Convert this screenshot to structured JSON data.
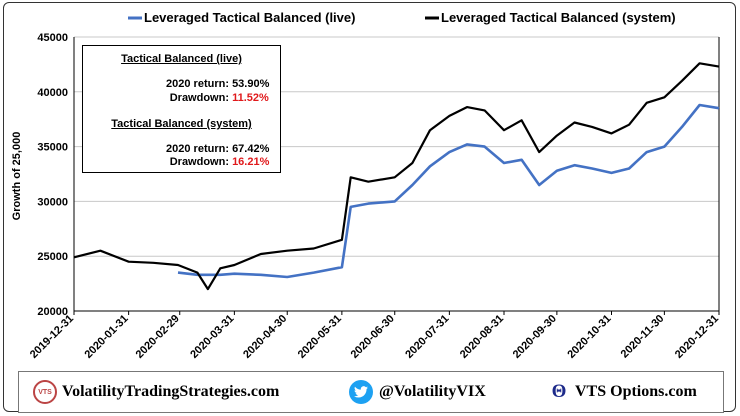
{
  "chart_data": {
    "type": "line",
    "ylabel": "Growth of 25,000",
    "ylim": [
      20000,
      45000
    ],
    "yticks": [
      "20000",
      "25000",
      "30000",
      "35000",
      "40000",
      "45000"
    ],
    "xticks": [
      "2019-12-31",
      "2020-01-31",
      "2020-02-29",
      "2020-03-31",
      "2020-04-30",
      "2020-05-31",
      "2020-06-30",
      "2020-07-31",
      "2020-08-31",
      "2020-09-30",
      "2020-10-31",
      "2020-11-30",
      "2020-12-31"
    ],
    "x": [
      "2019-12-31",
      "2020-01-15",
      "2020-01-31",
      "2020-02-14",
      "2020-02-28",
      "2020-03-10",
      "2020-03-16",
      "2020-03-23",
      "2020-03-31",
      "2020-04-15",
      "2020-04-30",
      "2020-05-15",
      "2020-05-31",
      "2020-06-05",
      "2020-06-15",
      "2020-06-30",
      "2020-07-10",
      "2020-07-20",
      "2020-07-31",
      "2020-08-10",
      "2020-08-20",
      "2020-08-31",
      "2020-09-10",
      "2020-09-20",
      "2020-09-30",
      "2020-10-10",
      "2020-10-20",
      "2020-10-31",
      "2020-11-10",
      "2020-11-20",
      "2020-11-30",
      "2020-12-10",
      "2020-12-20",
      "2020-12-31"
    ],
    "series": [
      {
        "name": "Leveraged Tactical Balanced  (live)",
        "color": "#4472c4",
        "values": [
          null,
          null,
          null,
          null,
          23500,
          23300,
          23300,
          23300,
          23400,
          23300,
          23100,
          23500,
          24000,
          29500,
          29800,
          30000,
          31500,
          33200,
          34500,
          35200,
          35000,
          33500,
          33800,
          31500,
          32800,
          33300,
          33000,
          32600,
          33000,
          34500,
          35000,
          36800,
          38800,
          38500
        ]
      },
      {
        "name": "Leveraged Tactical Balanced  (system)",
        "color": "#000000",
        "values": [
          24900,
          25500,
          24500,
          24400,
          24200,
          23500,
          22000,
          23900,
          24200,
          25200,
          25500,
          25700,
          26500,
          32200,
          31800,
          32200,
          33500,
          36500,
          37800,
          38600,
          38300,
          36500,
          37400,
          34500,
          36000,
          37200,
          36800,
          36200,
          37000,
          39000,
          39500,
          41000,
          42600,
          42300
        ]
      }
    ],
    "legend_position": "top",
    "grid": true
  },
  "stats": {
    "live_title": "Tactical Balanced  (live)",
    "live_return_label": "2020 return:",
    "live_return": "53.90%",
    "live_dd_label": "Drawdown:",
    "live_dd": "11.52%",
    "system_title": "Tactical Balanced  (system)",
    "system_return_label": "2020 return:",
    "system_return": "67.42%",
    "system_dd_label": "Drawdown:",
    "system_dd": "16.21%"
  },
  "footer": {
    "site": "VolatilityTradingStrategies.com",
    "vts_badge": "VTS",
    "twitter": "@VolatilityVIX",
    "options": "VTS Options.com",
    "accent": "#e0191b"
  }
}
